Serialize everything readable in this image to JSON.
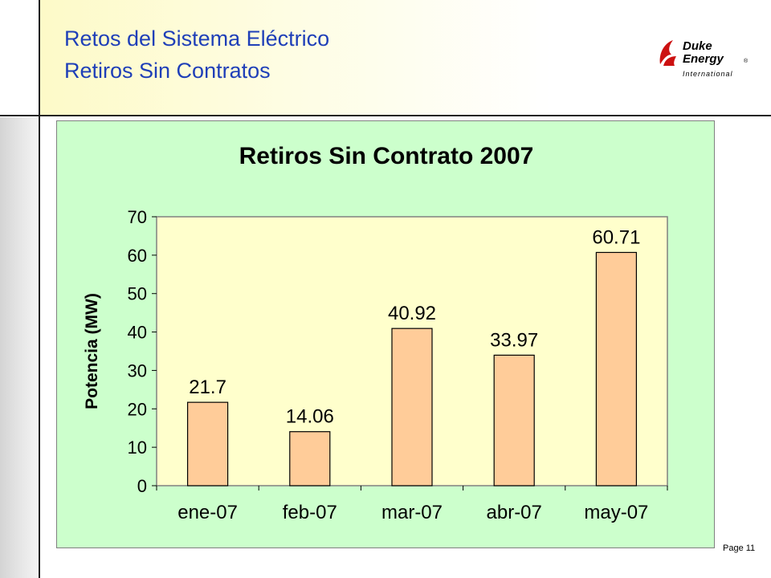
{
  "slide": {
    "title_line1": "Retos del Sistema Eléctrico",
    "title_line2": "Retiros Sin Contratos",
    "page_label": "Page 11",
    "accent_color": "#1f3fb8",
    "header_color": "#fdfac8",
    "chart_bg_color": "#ccffcc",
    "plot_bg_color": "#ffffcc",
    "bar_color": "#ffcc99"
  },
  "logo": {
    "line1": "Duke",
    "line2": "Energy",
    "line3": "International",
    "mark": "®",
    "color": "#cc1111"
  },
  "chart_data": {
    "type": "bar",
    "title": "Retiros Sin Contrato 2007",
    "xlabel": "",
    "ylabel": "Potencia (MW)",
    "categories": [
      "ene-07",
      "feb-07",
      "mar-07",
      "abr-07",
      "may-07"
    ],
    "values": [
      21.7,
      14.06,
      40.92,
      33.97,
      60.71
    ],
    "value_labels": [
      "21.7",
      "14.06",
      "40.92",
      "33.97",
      "60.71"
    ],
    "ylim": [
      0,
      70
    ],
    "yticks": [
      0,
      10,
      20,
      30,
      40,
      50,
      60,
      70
    ],
    "grid": false,
    "legend": "none"
  }
}
